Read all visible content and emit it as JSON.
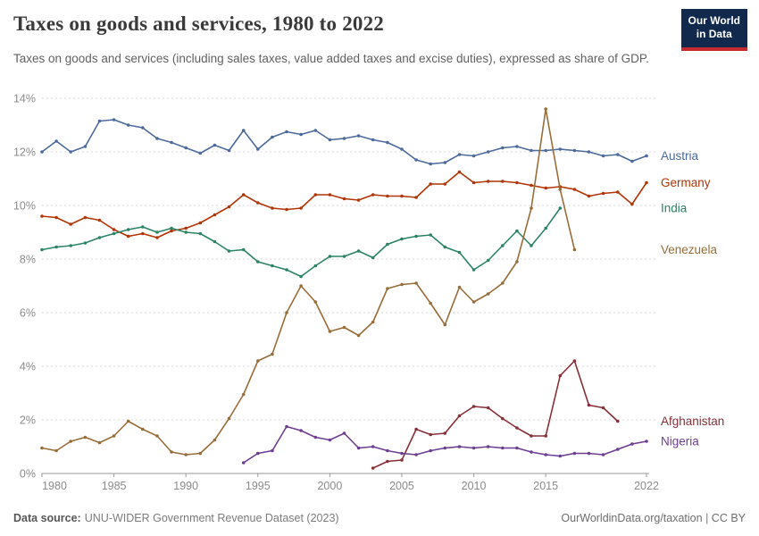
{
  "header": {
    "title": "Taxes on goods and services, 1980 to 2022",
    "subtitle": "Taxes on goods and services (including sales taxes, value added taxes and excise duties), expressed as share of GDP.",
    "logo": {
      "line1": "Our World",
      "line2": "in Data",
      "bg": "#12294e",
      "accent": "#c32b31"
    }
  },
  "footer": {
    "source_label": "Data source:",
    "source_text": "UNU-WIDER Government Revenue Dataset (2023)",
    "link_text": "OurWorldinData.org/taxation",
    "separator": " | ",
    "license": "CC BY"
  },
  "chart_data": {
    "type": "line",
    "title": "Taxes on goods and services, 1980 to 2022",
    "xlabel": "",
    "ylabel": "Share of GDP",
    "unit": "%",
    "xlim": [
      1980,
      2022
    ],
    "ylim": [
      0,
      14
    ],
    "x_ticks": [
      1980,
      1985,
      1990,
      1995,
      2000,
      2005,
      2010,
      2015,
      2022
    ],
    "y_ticks": [
      0,
      2,
      4,
      6,
      8,
      10,
      12,
      14
    ],
    "y_tick_labels": [
      "0%",
      "2%",
      "4%",
      "6%",
      "8%",
      "10%",
      "12%",
      "14%"
    ],
    "grid": true,
    "grid_color": "#dadada",
    "axis_color": "#9a9a9a",
    "legend_position": "right",
    "series": [
      {
        "name": "Austria",
        "color": "#4C6A9C",
        "start_year": 1980,
        "values": [
          12.0,
          12.4,
          12.0,
          12.2,
          13.15,
          13.2,
          13.0,
          12.9,
          12.5,
          12.35,
          12.15,
          11.95,
          12.25,
          12.05,
          12.8,
          12.1,
          12.55,
          12.75,
          12.65,
          12.8,
          12.45,
          12.5,
          12.6,
          12.45,
          12.35,
          12.1,
          11.7,
          11.55,
          11.6,
          11.9,
          11.85,
          12.0,
          12.15,
          12.2,
          12.05,
          12.05,
          12.1,
          12.05,
          12.0,
          11.85,
          11.9,
          11.65,
          11.85
        ]
      },
      {
        "name": "Germany",
        "color": "#B13507",
        "start_year": 1980,
        "values": [
          9.6,
          9.55,
          9.3,
          9.55,
          9.45,
          9.1,
          8.85,
          8.95,
          8.8,
          9.05,
          9.15,
          9.35,
          9.65,
          9.95,
          10.4,
          10.1,
          9.9,
          9.85,
          9.9,
          10.4,
          10.4,
          10.25,
          10.2,
          10.4,
          10.35,
          10.35,
          10.3,
          10.8,
          10.8,
          11.25,
          10.85,
          10.9,
          10.9,
          10.85,
          10.75,
          10.65,
          10.7,
          10.6,
          10.35,
          10.45,
          10.5,
          10.05,
          10.85
        ]
      },
      {
        "name": "India",
        "color": "#2C8465",
        "start_year": 1980,
        "values": [
          8.35,
          8.45,
          8.5,
          8.6,
          8.8,
          8.95,
          9.1,
          9.2,
          9.0,
          9.15,
          9.0,
          8.95,
          8.65,
          8.3,
          8.35,
          7.9,
          7.75,
          7.6,
          7.35,
          7.75,
          8.1,
          8.1,
          8.3,
          8.05,
          8.55,
          8.75,
          8.85,
          8.9,
          8.45,
          8.25,
          7.6,
          7.95,
          8.5,
          9.05,
          8.5,
          9.15,
          9.9
        ]
      },
      {
        "name": "Venezuela",
        "color": "#996D39",
        "start_year": 1980,
        "values": [
          0.95,
          0.85,
          1.2,
          1.35,
          1.15,
          1.4,
          1.95,
          1.65,
          1.4,
          0.8,
          0.7,
          0.75,
          1.25,
          2.05,
          2.95,
          4.2,
          4.45,
          6.0,
          7.0,
          6.4,
          5.3,
          5.45,
          5.15,
          5.65,
          6.9,
          7.05,
          7.1,
          6.35,
          5.55,
          6.95,
          6.4,
          6.7,
          7.1,
          7.9,
          9.9,
          13.6,
          10.6,
          8.35
        ]
      },
      {
        "name": "Afghanistan",
        "color": "#883039",
        "start_year": 2003,
        "values": [
          0.2,
          0.45,
          0.5,
          1.65,
          1.45,
          1.5,
          2.15,
          2.5,
          2.45,
          2.05,
          1.7,
          1.4,
          1.4,
          3.65,
          4.2,
          2.55,
          2.45,
          1.95
        ]
      },
      {
        "name": "Nigeria",
        "color": "#6D3E91",
        "start_year": 1994,
        "values": [
          0.4,
          0.75,
          0.85,
          1.75,
          1.6,
          1.35,
          1.25,
          1.5,
          0.95,
          1.0,
          0.85,
          0.75,
          0.7,
          0.85,
          0.95,
          1.0,
          0.95,
          1.0,
          0.95,
          0.95,
          0.8,
          0.7,
          0.65,
          0.75,
          0.75,
          0.7,
          0.9,
          1.1,
          1.2
        ]
      }
    ]
  }
}
